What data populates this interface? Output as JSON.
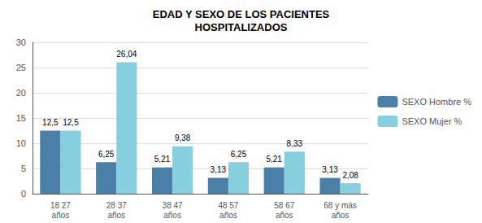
{
  "chart_data": {
    "type": "bar",
    "title": "EDAD Y SEXO DE LOS PACIENTES\nHOSPITALIZADOS",
    "categories": [
      "18 27\naños",
      "28 37\naños",
      "38 47\naños",
      "48 57\naños",
      "58 67\naños",
      "68 y más\naños"
    ],
    "series": [
      {
        "name": "SEXO Hombre %",
        "color": "#4a7fa8",
        "values": [
          12.5,
          6.25,
          5.21,
          3.13,
          5.21,
          3.13
        ],
        "value_labels": [
          "12,5",
          "6,25",
          "5,21",
          "3,13",
          "5,21",
          "3,13"
        ]
      },
      {
        "name": "SEXO Mujer %",
        "color": "#87cedf",
        "values": [
          12.5,
          26.04,
          9.38,
          6.25,
          8.33,
          2.08
        ],
        "value_labels": [
          "12,5",
          "26,04",
          "9,38",
          "6,25",
          "8,33",
          "2,08"
        ]
      }
    ],
    "ylim": [
      0,
      30
    ],
    "yticks": [
      0,
      5,
      10,
      15,
      20,
      25,
      30
    ],
    "grid": true,
    "legend": "right",
    "data_labels": true
  }
}
